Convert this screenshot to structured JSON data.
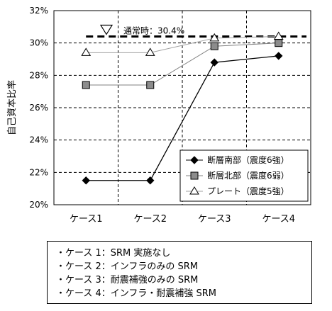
{
  "chart_data": {
    "type": "line",
    "ylabel": "自己資本比率",
    "categories": [
      "ケース1",
      "ケース2",
      "ケース3",
      "ケース4"
    ],
    "y_tick_labels": [
      "20%",
      "22%",
      "24%",
      "26%",
      "28%",
      "30%",
      "32%"
    ],
    "ylim": [
      20,
      32
    ],
    "grid": true,
    "legend_position": "bottom-right",
    "series": [
      {
        "name": "断層南部（震度6強）",
        "values": [
          21.5,
          21.5,
          28.8,
          29.2
        ],
        "marker": "diamond",
        "color": "#000000"
      },
      {
        "name": "断層北部（震度6弱）",
        "values": [
          27.4,
          27.4,
          29.8,
          30.0
        ],
        "marker": "square",
        "color": "#808080"
      },
      {
        "name": "プレート（震度5強）",
        "values": [
          29.4,
          29.4,
          30.3,
          30.4
        ],
        "marker": "triangle",
        "color": "#000000"
      }
    ],
    "reference_line": {
      "label": "通常時：30.4%",
      "value": 30.4
    }
  },
  "notes": [
    "・ケース 1：SRM 実施なし",
    "・ケース 2：インフラのみの SRM",
    "・ケース 3：耐震補強のみの SRM",
    "・ケース 4：インフラ・耐震補強 SRM"
  ]
}
